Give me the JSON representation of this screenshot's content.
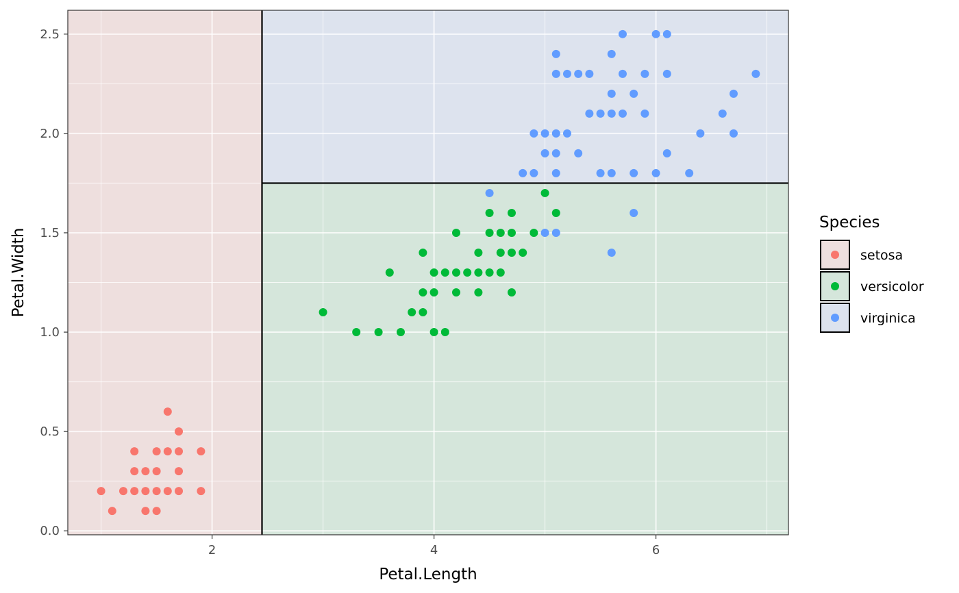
{
  "chart_data": {
    "type": "scatter",
    "xlabel": "Petal.Length",
    "ylabel": "Petal.Width",
    "xlim": [
      0.7,
      7.194
    ],
    "ylim": [
      -0.02,
      2.62
    ],
    "x_ticks": [
      2,
      4,
      6
    ],
    "x_tick_labels": [
      "2",
      "4",
      "6"
    ],
    "y_ticks": [
      0,
      0.5,
      1,
      1.5,
      2,
      2.5
    ],
    "y_tick_labels": [
      "0.0",
      "0.5",
      "1.0",
      "1.5",
      "2.0",
      "2.5"
    ],
    "grid": true,
    "legend": {
      "title": "Species",
      "position": "right"
    },
    "regions": [
      {
        "label": "setosa",
        "x": [
          0.7,
          2.45
        ],
        "y": [
          -0.02,
          2.62
        ]
      },
      {
        "label": "versicolor",
        "x": [
          2.45,
          7.194
        ],
        "y": [
          -0.02,
          1.75
        ]
      },
      {
        "label": "virginica",
        "x": [
          2.45,
          7.194
        ],
        "y": [
          1.75,
          2.62
        ]
      }
    ],
    "series": [
      {
        "name": "setosa",
        "color": "#F8766D",
        "fill": "#EEDFDE",
        "points": [
          [
            1.0,
            0.2
          ],
          [
            1.1,
            0.1
          ],
          [
            1.2,
            0.2
          ],
          [
            1.3,
            0.2
          ],
          [
            1.3,
            0.3
          ],
          [
            1.3,
            0.4
          ],
          [
            1.4,
            0.1
          ],
          [
            1.4,
            0.2
          ],
          [
            1.4,
            0.3
          ],
          [
            1.5,
            0.1
          ],
          [
            1.5,
            0.2
          ],
          [
            1.5,
            0.3
          ],
          [
            1.5,
            0.4
          ],
          [
            1.6,
            0.2
          ],
          [
            1.6,
            0.4
          ],
          [
            1.6,
            0.6
          ],
          [
            1.7,
            0.2
          ],
          [
            1.7,
            0.3
          ],
          [
            1.7,
            0.4
          ],
          [
            1.7,
            0.5
          ],
          [
            1.9,
            0.2
          ],
          [
            1.9,
            0.4
          ]
        ]
      },
      {
        "name": "versicolor",
        "color": "#00BA38",
        "fill": "#D5E6DB",
        "points": [
          [
            3.0,
            1.1
          ],
          [
            3.3,
            1.0
          ],
          [
            3.5,
            1.0
          ],
          [
            3.6,
            1.3
          ],
          [
            3.7,
            1.0
          ],
          [
            3.8,
            1.1
          ],
          [
            3.9,
            1.1
          ],
          [
            3.9,
            1.2
          ],
          [
            3.9,
            1.4
          ],
          [
            4.0,
            1.0
          ],
          [
            4.0,
            1.2
          ],
          [
            4.0,
            1.3
          ],
          [
            4.1,
            1.0
          ],
          [
            4.1,
            1.3
          ],
          [
            4.2,
            1.2
          ],
          [
            4.2,
            1.3
          ],
          [
            4.2,
            1.5
          ],
          [
            4.3,
            1.3
          ],
          [
            4.4,
            1.2
          ],
          [
            4.4,
            1.3
          ],
          [
            4.4,
            1.4
          ],
          [
            4.5,
            1.3
          ],
          [
            4.5,
            1.5
          ],
          [
            4.5,
            1.6
          ],
          [
            4.6,
            1.3
          ],
          [
            4.6,
            1.4
          ],
          [
            4.6,
            1.5
          ],
          [
            4.7,
            1.2
          ],
          [
            4.7,
            1.4
          ],
          [
            4.7,
            1.5
          ],
          [
            4.7,
            1.6
          ],
          [
            4.8,
            1.4
          ],
          [
            4.9,
            1.5
          ],
          [
            5.0,
            1.7
          ],
          [
            5.1,
            1.6
          ]
        ]
      },
      {
        "name": "virginica",
        "color": "#619CFF",
        "fill": "#DDE3EE",
        "points": [
          [
            4.5,
            1.7
          ],
          [
            4.8,
            1.8
          ],
          [
            4.9,
            1.8
          ],
          [
            4.9,
            2.0
          ],
          [
            5.0,
            1.5
          ],
          [
            5.0,
            1.9
          ],
          [
            5.0,
            2.0
          ],
          [
            5.1,
            1.5
          ],
          [
            5.1,
            1.8
          ],
          [
            5.1,
            1.9
          ],
          [
            5.1,
            2.0
          ],
          [
            5.1,
            2.3
          ],
          [
            5.1,
            2.4
          ],
          [
            5.2,
            2.0
          ],
          [
            5.2,
            2.3
          ],
          [
            5.3,
            1.9
          ],
          [
            5.3,
            2.3
          ],
          [
            5.4,
            2.1
          ],
          [
            5.4,
            2.3
          ],
          [
            5.5,
            1.8
          ],
          [
            5.5,
            2.1
          ],
          [
            5.6,
            1.4
          ],
          [
            5.6,
            1.8
          ],
          [
            5.6,
            2.1
          ],
          [
            5.6,
            2.2
          ],
          [
            5.6,
            2.4
          ],
          [
            5.7,
            2.1
          ],
          [
            5.7,
            2.3
          ],
          [
            5.7,
            2.5
          ],
          [
            5.8,
            1.6
          ],
          [
            5.8,
            1.8
          ],
          [
            5.8,
            2.2
          ],
          [
            5.9,
            2.1
          ],
          [
            5.9,
            2.3
          ],
          [
            6.0,
            1.8
          ],
          [
            6.0,
            2.5
          ],
          [
            6.1,
            1.9
          ],
          [
            6.1,
            2.3
          ],
          [
            6.1,
            2.5
          ],
          [
            6.3,
            1.8
          ],
          [
            6.4,
            2.0
          ],
          [
            6.6,
            2.1
          ],
          [
            6.7,
            2.0
          ],
          [
            6.7,
            2.2
          ],
          [
            6.9,
            2.3
          ]
        ]
      }
    ]
  }
}
